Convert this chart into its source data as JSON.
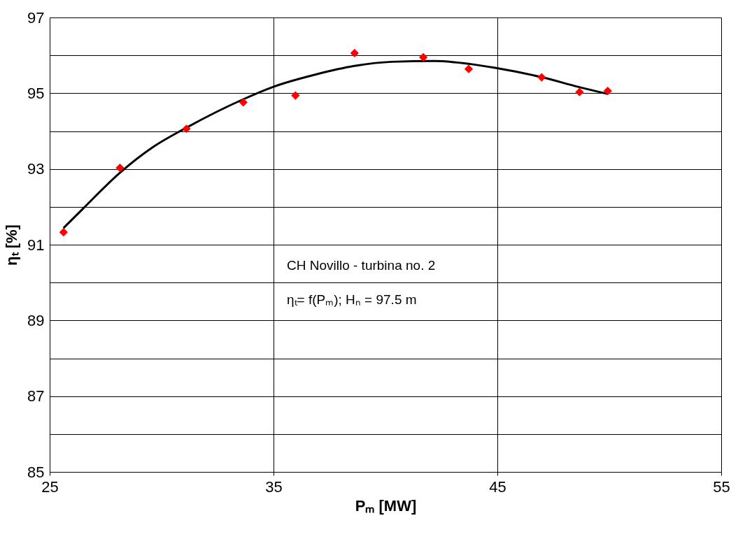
{
  "chart_data": {
    "type": "scatter",
    "xlabel": "Pₘ [MW]",
    "ylabel": "ηₜ [%]",
    "annotations": [
      "CH Novillo - turbina no. 2",
      "ηₜ= f(Pₘ); Hₙ =  97.5 m"
    ],
    "xlim": [
      25,
      55
    ],
    "xticks": [
      25,
      35,
      45,
      55
    ],
    "ylim": [
      85,
      97
    ],
    "yticks": [
      85,
      {
        "value": 86,
        "label": null
      },
      87,
      {
        "value": 88,
        "label": null
      },
      89,
      {
        "value": 90,
        "label": null
      },
      91,
      {
        "value": 92,
        "label": null
      },
      93,
      {
        "value": 94,
        "label": null
      },
      95,
      {
        "value": 96,
        "label": null
      },
      97
    ],
    "grid": true,
    "series": [
      {
        "marker": "diamond",
        "color": "#ff0000",
        "x": [
          25.62,
          28.14,
          31.11,
          33.65,
          35.98,
          38.62,
          41.69,
          43.72,
          46.98,
          48.67,
          49.93
        ],
        "values": [
          91.33,
          93.03,
          94.06,
          94.76,
          94.94,
          96.06,
          95.95,
          95.64,
          95.42,
          95.03,
          95.06
        ]
      },
      {
        "type": "line",
        "marker": "none",
        "line_style": "solid",
        "color": "#000000",
        "x": [
          25.62,
          26.47,
          28.14,
          29.62,
          31.11,
          33.65,
          35.0,
          36.86,
          38.62,
          40.3,
          42.2,
          43.8,
          44.9,
          47.0,
          48.6,
          49.93
        ],
        "values": [
          91.44,
          91.94,
          92.9,
          93.58,
          94.09,
          94.84,
          95.17,
          95.49,
          95.72,
          95.83,
          95.85,
          95.77,
          95.67,
          95.42,
          95.17,
          94.98
        ]
      }
    ]
  }
}
